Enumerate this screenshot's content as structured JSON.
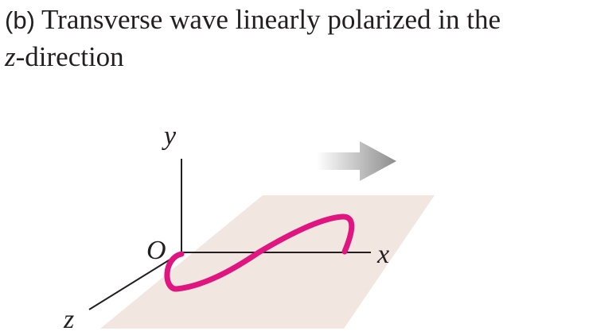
{
  "caption": {
    "part_label": "(b)",
    "title_line1": "Transverse wave linearly polarized in the",
    "title_line2_italic": "z",
    "title_line2_rest": "-direction"
  },
  "axes": {
    "y_label": "y",
    "x_label": "x",
    "z_label": "z",
    "origin_label": "O"
  },
  "colors": {
    "text": "#231f20",
    "axis": "#231f20",
    "plane": "#f2e6e1",
    "wave": "#e0157f",
    "arrow_dark": "#8c8c8c",
    "arrow_light": "#ffffff"
  }
}
